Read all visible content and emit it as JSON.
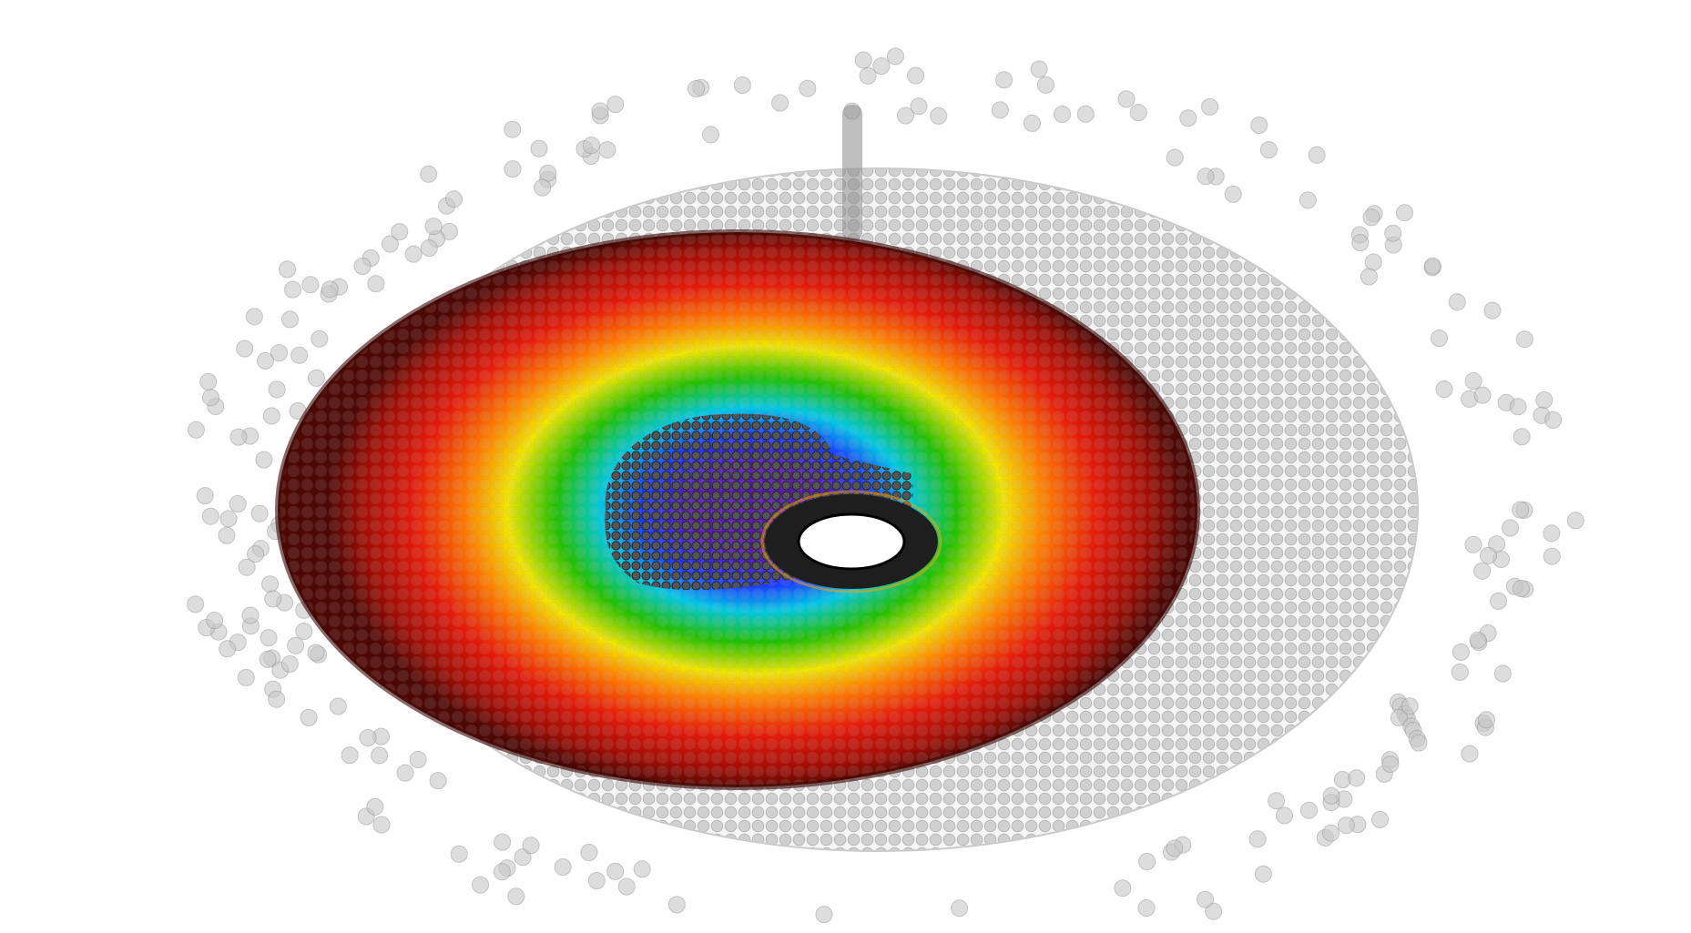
{
  "scene": {
    "background": "#ffffff",
    "subject": "particle-disk-simulation",
    "colors": {
      "particle_grey": "#b8b8b8",
      "particle_outline": "#8a8a8a",
      "inner_dark": "#1e1e1e",
      "core_hole": "#ffffff",
      "rainbow_outer": "#5e0a05",
      "rainbow_red": "#e51a0a",
      "rainbow_orange": "#ff7a00",
      "rainbow_yellow": "#f2e600",
      "rainbow_green": "#22c000",
      "rainbow_cyan": "#00c8e6",
      "rainbow_blue": "#1a3cff",
      "rainbow_violet": "#5a1ab4"
    },
    "icons": [
      "scattered-particle-icon"
    ]
  }
}
